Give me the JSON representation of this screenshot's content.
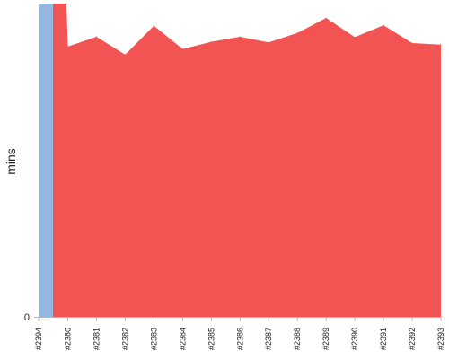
{
  "chart_data": {
    "type": "area",
    "ylabel": "mins",
    "y_tick_labels": [
      "0"
    ],
    "ylim": [
      0,
      100
    ],
    "categories": [
      "#2394",
      "#2380",
      "#2381",
      "#2382",
      "#2383",
      "#2384",
      "#2385",
      "#2386",
      "#2387",
      "#2388",
      "#2389",
      "#2390",
      "#2391",
      "#2392",
      "#2393"
    ],
    "series": [
      {
        "color": "#93b7de",
        "values": [
          100,
          0,
          0,
          0,
          0,
          0,
          0,
          0,
          0,
          0,
          0,
          0,
          0,
          0,
          0
        ]
      },
      {
        "color": "#f25454",
        "values": [
          100,
          86.3,
          89.4,
          83.7,
          92.9,
          85.5,
          87.8,
          89.4,
          87.6,
          90.6,
          95.4,
          89.3,
          93.1,
          87.4,
          86.9
        ]
      }
    ],
    "grid": false,
    "legend": "none"
  }
}
